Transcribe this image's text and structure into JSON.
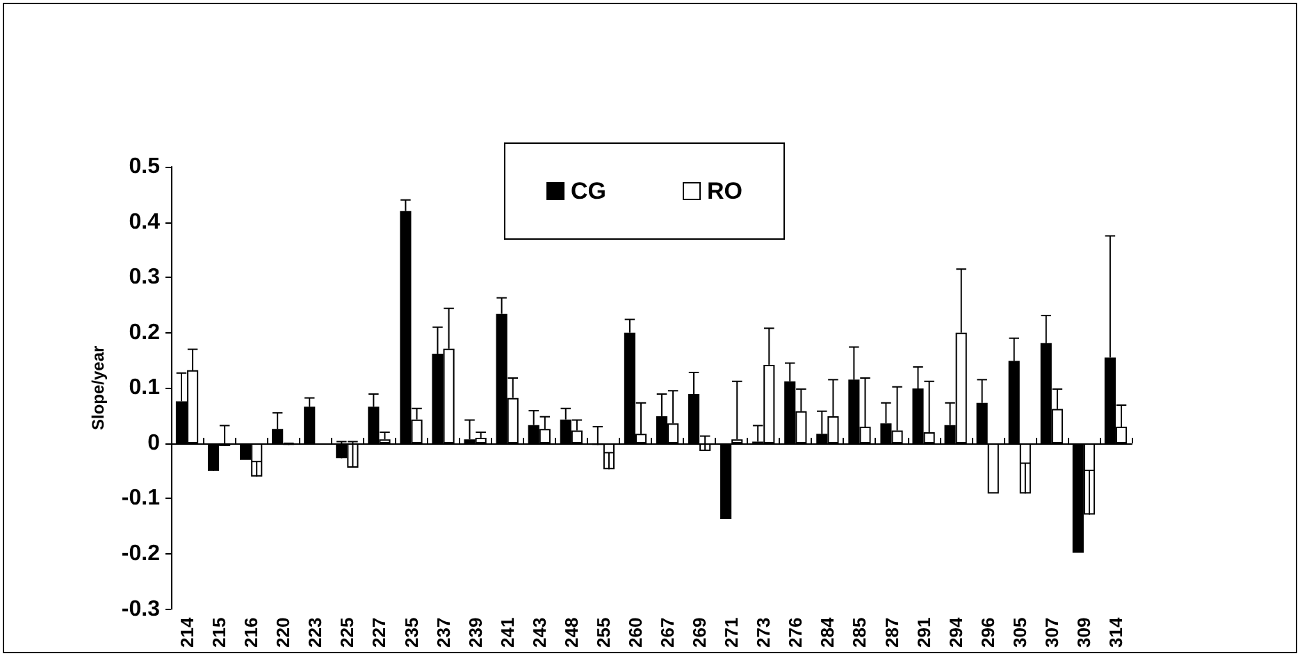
{
  "chart_data": {
    "type": "bar",
    "ylabel": "Slope/year",
    "categories": [
      "214",
      "215",
      "216",
      "220",
      "223",
      "225",
      "227",
      "235",
      "237",
      "239",
      "241",
      "243",
      "248",
      "255",
      "260",
      "267",
      "269",
      "271",
      "273",
      "276",
      "284",
      "285",
      "287",
      "291",
      "294",
      "296",
      "305",
      "307",
      "309",
      "314"
    ],
    "series": [
      {
        "name": "CG",
        "color": "#000000",
        "values": [
          0.076,
          -0.05,
          -0.03,
          0.026,
          0.066,
          -0.027,
          0.066,
          0.42,
          0.162,
          0.007,
          0.234,
          0.033,
          0.043,
          -0.003,
          0.2,
          0.049,
          0.089,
          -0.137,
          0.003,
          0.112,
          0.017,
          0.115,
          0.036,
          0.099,
          0.033,
          0.073,
          0.149,
          0.181,
          -0.198,
          0.155
        ],
        "errors": [
          [
            0.076,
            0.127
          ],
          [
            -0.05,
            -0.005
          ],
          null,
          [
            0.026,
            0.055
          ],
          [
            0.066,
            0.082
          ],
          [
            -0.027,
            0.003
          ],
          [
            0.066,
            0.089
          ],
          [
            0.42,
            0.44
          ],
          [
            0.162,
            0.21
          ],
          [
            0.007,
            0.042
          ],
          [
            0.234,
            0.263
          ],
          [
            0.033,
            0.059
          ],
          [
            0.043,
            0.063
          ],
          [
            -0.003,
            0.03
          ],
          [
            0.2,
            0.224
          ],
          [
            0.049,
            0.089
          ],
          [
            0.089,
            0.128
          ],
          null,
          [
            0.003,
            0.032
          ],
          [
            0.112,
            0.145
          ],
          [
            0.017,
            0.058
          ],
          [
            0.115,
            0.174
          ],
          [
            0.036,
            0.073
          ],
          [
            0.099,
            0.138
          ],
          [
            0.033,
            0.073
          ],
          [
            0.073,
            0.115
          ],
          [
            0.149,
            0.19
          ],
          [
            0.181,
            0.231
          ],
          null,
          [
            0.155,
            0.375
          ]
        ]
      },
      {
        "name": "RO",
        "color": "#ffffff",
        "values": [
          0.132,
          -0.005,
          -0.06,
          -0.003,
          null,
          -0.044,
          0.007,
          0.043,
          0.171,
          0.01,
          0.082,
          0.026,
          0.023,
          -0.047,
          0.017,
          0.036,
          -0.014,
          0.007,
          0.142,
          0.058,
          0.049,
          0.03,
          0.023,
          0.02,
          0.2,
          -0.091,
          -0.091,
          0.062,
          -0.129,
          0.03
        ],
        "errors": [
          [
            0.132,
            0.17
          ],
          [
            -0.005,
            0.032
          ],
          [
            -0.06,
            -0.033
          ],
          [
            -0.003,
            0
          ],
          null,
          [
            -0.044,
            0.003
          ],
          [
            0.007,
            0.02
          ],
          [
            0.043,
            0.063
          ],
          [
            0.171,
            0.244
          ],
          [
            0.01,
            0.02
          ],
          [
            0.082,
            0.118
          ],
          [
            0.026,
            0.048
          ],
          [
            0.023,
            0.042
          ],
          [
            -0.047,
            -0.017
          ],
          [
            0.017,
            0.073
          ],
          [
            0.036,
            0.095
          ],
          [
            -0.014,
            0.013
          ],
          [
            0.007,
            0.112
          ],
          [
            0.142,
            0.208
          ],
          [
            0.058,
            0.098
          ],
          [
            0.049,
            0.115
          ],
          [
            0.03,
            0.118
          ],
          [
            0.023,
            0.102
          ],
          [
            0.02,
            0.112
          ],
          [
            0.2,
            0.315
          ],
          null,
          [
            -0.091,
            -0.036
          ],
          [
            0.062,
            0.098
          ],
          [
            -0.129,
            -0.049
          ],
          [
            0.03,
            0.069
          ]
        ]
      }
    ],
    "ylim": [
      -0.3,
      0.5
    ],
    "yticks": [
      -0.3,
      -0.2,
      -0.1,
      0,
      0.1,
      0.2,
      0.3,
      0.4,
      0.5
    ],
    "legend": "top"
  }
}
